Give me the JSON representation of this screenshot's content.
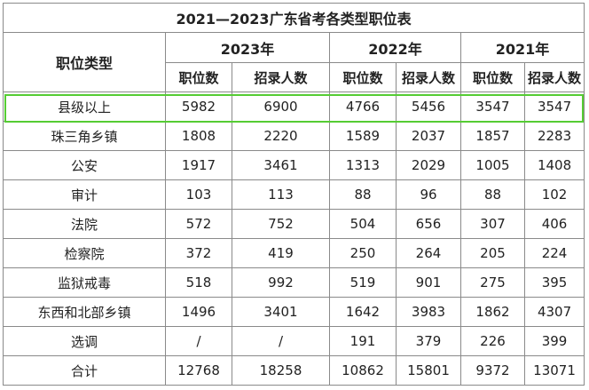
{
  "title": "2021—2023广东省考各类型职位表",
  "header": {
    "category_label": "职位类型",
    "years": [
      "2023年",
      "2022年",
      "2021年"
    ],
    "subheaders": [
      "职位数",
      "招录人数"
    ]
  },
  "rows": [
    {
      "category": "县级以上",
      "values": [
        "5982",
        "6900",
        "4766",
        "5456",
        "3547",
        "3547"
      ]
    },
    {
      "category": "珠三角乡镇",
      "values": [
        "1808",
        "2220",
        "1589",
        "2037",
        "1857",
        "2283"
      ]
    },
    {
      "category": "公安",
      "values": [
        "1917",
        "3461",
        "1313",
        "2029",
        "1005",
        "1408"
      ]
    },
    {
      "category": "审计",
      "values": [
        "103",
        "113",
        "88",
        "96",
        "88",
        "102"
      ]
    },
    {
      "category": "法院",
      "values": [
        "572",
        "752",
        "504",
        "656",
        "307",
        "406"
      ]
    },
    {
      "category": "检察院",
      "values": [
        "372",
        "419",
        "250",
        "264",
        "205",
        "224"
      ]
    },
    {
      "category": "监狱戒毒",
      "values": [
        "518",
        "992",
        "519",
        "901",
        "275",
        "395"
      ]
    },
    {
      "category": "东西和北部乡镇",
      "values": [
        "1496",
        "3401",
        "1642",
        "3983",
        "1862",
        "4307"
      ]
    },
    {
      "category": "选调",
      "values": [
        "/",
        "/",
        "191",
        "379",
        "226",
        "399"
      ]
    },
    {
      "category": "合计",
      "values": [
        "12768",
        "18258",
        "10862",
        "15801",
        "9372",
        "13071"
      ]
    }
  ],
  "highlight_color": "#55cc33"
}
